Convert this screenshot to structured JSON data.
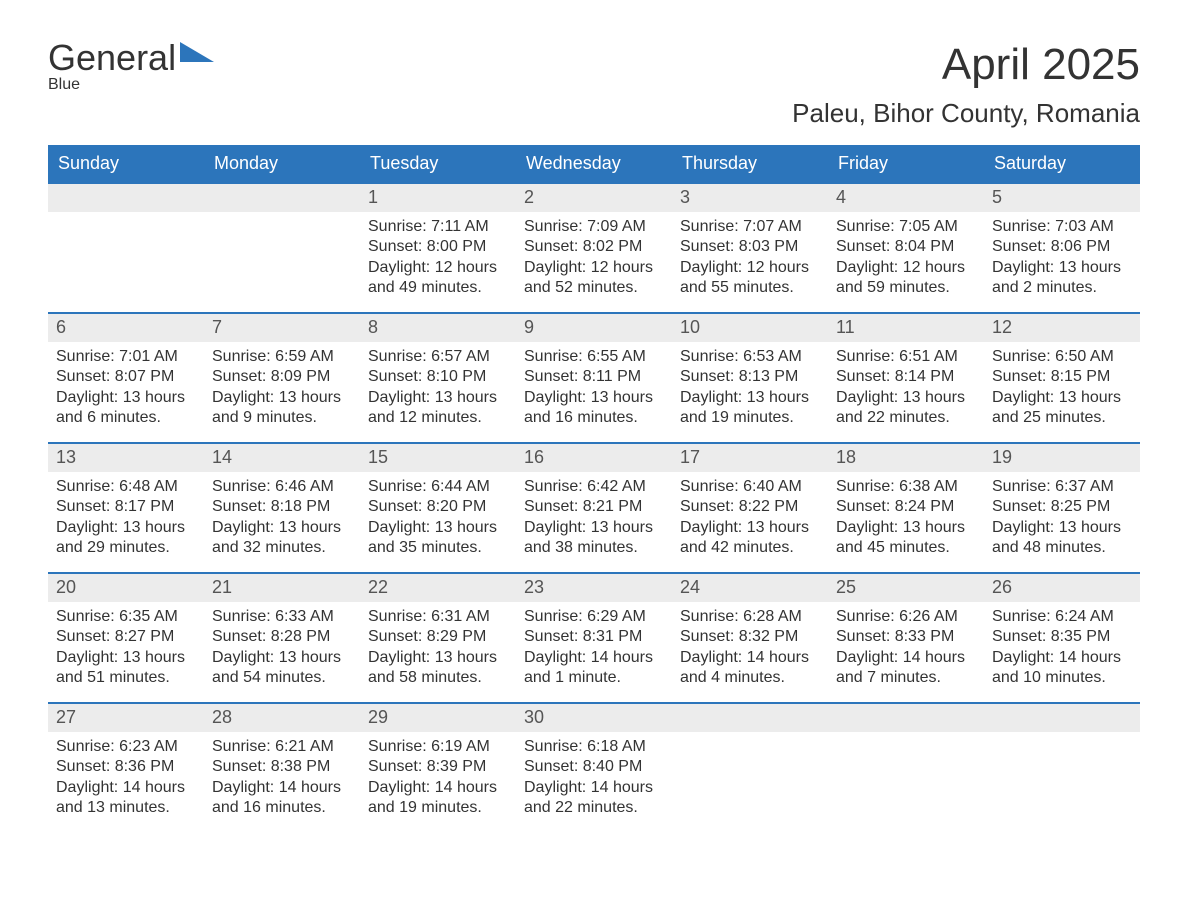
{
  "header": {
    "logo_word1": "General",
    "logo_word2": "Blue",
    "month_title": "April 2025",
    "location": "Paleu, Bihor County, Romania"
  },
  "style": {
    "accent_color": "#2c75bb",
    "header_bg": "#2c75bb",
    "header_fg": "#ffffff",
    "date_strip_bg": "#ececec",
    "date_fg": "#555555",
    "body_fg": "#333333",
    "page_bg": "#ffffff",
    "month_title_fontsize": 44,
    "location_fontsize": 26,
    "dow_fontsize": 18,
    "date_fontsize": 18,
    "body_fontsize": 16,
    "columns": 7,
    "rows": 5
  },
  "days_of_week": [
    "Sunday",
    "Monday",
    "Tuesday",
    "Wednesday",
    "Thursday",
    "Friday",
    "Saturday"
  ],
  "weeks": [
    [
      {
        "date": ""
      },
      {
        "date": ""
      },
      {
        "date": "1",
        "sunrise": "Sunrise: 7:11 AM",
        "sunset": "Sunset: 8:00 PM",
        "daylight1": "Daylight: 12 hours",
        "daylight2": "and 49 minutes."
      },
      {
        "date": "2",
        "sunrise": "Sunrise: 7:09 AM",
        "sunset": "Sunset: 8:02 PM",
        "daylight1": "Daylight: 12 hours",
        "daylight2": "and 52 minutes."
      },
      {
        "date": "3",
        "sunrise": "Sunrise: 7:07 AM",
        "sunset": "Sunset: 8:03 PM",
        "daylight1": "Daylight: 12 hours",
        "daylight2": "and 55 minutes."
      },
      {
        "date": "4",
        "sunrise": "Sunrise: 7:05 AM",
        "sunset": "Sunset: 8:04 PM",
        "daylight1": "Daylight: 12 hours",
        "daylight2": "and 59 minutes."
      },
      {
        "date": "5",
        "sunrise": "Sunrise: 7:03 AM",
        "sunset": "Sunset: 8:06 PM",
        "daylight1": "Daylight: 13 hours",
        "daylight2": "and 2 minutes."
      }
    ],
    [
      {
        "date": "6",
        "sunrise": "Sunrise: 7:01 AM",
        "sunset": "Sunset: 8:07 PM",
        "daylight1": "Daylight: 13 hours",
        "daylight2": "and 6 minutes."
      },
      {
        "date": "7",
        "sunrise": "Sunrise: 6:59 AM",
        "sunset": "Sunset: 8:09 PM",
        "daylight1": "Daylight: 13 hours",
        "daylight2": "and 9 minutes."
      },
      {
        "date": "8",
        "sunrise": "Sunrise: 6:57 AM",
        "sunset": "Sunset: 8:10 PM",
        "daylight1": "Daylight: 13 hours",
        "daylight2": "and 12 minutes."
      },
      {
        "date": "9",
        "sunrise": "Sunrise: 6:55 AM",
        "sunset": "Sunset: 8:11 PM",
        "daylight1": "Daylight: 13 hours",
        "daylight2": "and 16 minutes."
      },
      {
        "date": "10",
        "sunrise": "Sunrise: 6:53 AM",
        "sunset": "Sunset: 8:13 PM",
        "daylight1": "Daylight: 13 hours",
        "daylight2": "and 19 minutes."
      },
      {
        "date": "11",
        "sunrise": "Sunrise: 6:51 AM",
        "sunset": "Sunset: 8:14 PM",
        "daylight1": "Daylight: 13 hours",
        "daylight2": "and 22 minutes."
      },
      {
        "date": "12",
        "sunrise": "Sunrise: 6:50 AM",
        "sunset": "Sunset: 8:15 PM",
        "daylight1": "Daylight: 13 hours",
        "daylight2": "and 25 minutes."
      }
    ],
    [
      {
        "date": "13",
        "sunrise": "Sunrise: 6:48 AM",
        "sunset": "Sunset: 8:17 PM",
        "daylight1": "Daylight: 13 hours",
        "daylight2": "and 29 minutes."
      },
      {
        "date": "14",
        "sunrise": "Sunrise: 6:46 AM",
        "sunset": "Sunset: 8:18 PM",
        "daylight1": "Daylight: 13 hours",
        "daylight2": "and 32 minutes."
      },
      {
        "date": "15",
        "sunrise": "Sunrise: 6:44 AM",
        "sunset": "Sunset: 8:20 PM",
        "daylight1": "Daylight: 13 hours",
        "daylight2": "and 35 minutes."
      },
      {
        "date": "16",
        "sunrise": "Sunrise: 6:42 AM",
        "sunset": "Sunset: 8:21 PM",
        "daylight1": "Daylight: 13 hours",
        "daylight2": "and 38 minutes."
      },
      {
        "date": "17",
        "sunrise": "Sunrise: 6:40 AM",
        "sunset": "Sunset: 8:22 PM",
        "daylight1": "Daylight: 13 hours",
        "daylight2": "and 42 minutes."
      },
      {
        "date": "18",
        "sunrise": "Sunrise: 6:38 AM",
        "sunset": "Sunset: 8:24 PM",
        "daylight1": "Daylight: 13 hours",
        "daylight2": "and 45 minutes."
      },
      {
        "date": "19",
        "sunrise": "Sunrise: 6:37 AM",
        "sunset": "Sunset: 8:25 PM",
        "daylight1": "Daylight: 13 hours",
        "daylight2": "and 48 minutes."
      }
    ],
    [
      {
        "date": "20",
        "sunrise": "Sunrise: 6:35 AM",
        "sunset": "Sunset: 8:27 PM",
        "daylight1": "Daylight: 13 hours",
        "daylight2": "and 51 minutes."
      },
      {
        "date": "21",
        "sunrise": "Sunrise: 6:33 AM",
        "sunset": "Sunset: 8:28 PM",
        "daylight1": "Daylight: 13 hours",
        "daylight2": "and 54 minutes."
      },
      {
        "date": "22",
        "sunrise": "Sunrise: 6:31 AM",
        "sunset": "Sunset: 8:29 PM",
        "daylight1": "Daylight: 13 hours",
        "daylight2": "and 58 minutes."
      },
      {
        "date": "23",
        "sunrise": "Sunrise: 6:29 AM",
        "sunset": "Sunset: 8:31 PM",
        "daylight1": "Daylight: 14 hours",
        "daylight2": "and 1 minute."
      },
      {
        "date": "24",
        "sunrise": "Sunrise: 6:28 AM",
        "sunset": "Sunset: 8:32 PM",
        "daylight1": "Daylight: 14 hours",
        "daylight2": "and 4 minutes."
      },
      {
        "date": "25",
        "sunrise": "Sunrise: 6:26 AM",
        "sunset": "Sunset: 8:33 PM",
        "daylight1": "Daylight: 14 hours",
        "daylight2": "and 7 minutes."
      },
      {
        "date": "26",
        "sunrise": "Sunrise: 6:24 AM",
        "sunset": "Sunset: 8:35 PM",
        "daylight1": "Daylight: 14 hours",
        "daylight2": "and 10 minutes."
      }
    ],
    [
      {
        "date": "27",
        "sunrise": "Sunrise: 6:23 AM",
        "sunset": "Sunset: 8:36 PM",
        "daylight1": "Daylight: 14 hours",
        "daylight2": "and 13 minutes."
      },
      {
        "date": "28",
        "sunrise": "Sunrise: 6:21 AM",
        "sunset": "Sunset: 8:38 PM",
        "daylight1": "Daylight: 14 hours",
        "daylight2": "and 16 minutes."
      },
      {
        "date": "29",
        "sunrise": "Sunrise: 6:19 AM",
        "sunset": "Sunset: 8:39 PM",
        "daylight1": "Daylight: 14 hours",
        "daylight2": "and 19 minutes."
      },
      {
        "date": "30",
        "sunrise": "Sunrise: 6:18 AM",
        "sunset": "Sunset: 8:40 PM",
        "daylight1": "Daylight: 14 hours",
        "daylight2": "and 22 minutes."
      },
      {
        "date": ""
      },
      {
        "date": ""
      },
      {
        "date": ""
      }
    ]
  ]
}
